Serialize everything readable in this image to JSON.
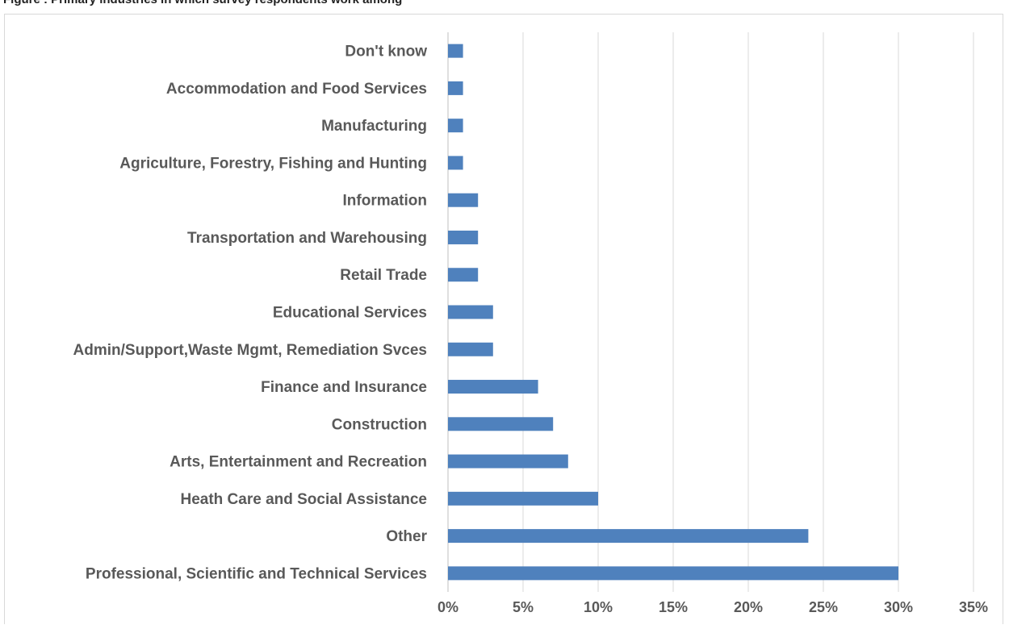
{
  "header": {
    "visible_text": "Figure : Primary industries in which survey respondents work among"
  },
  "chart_data": {
    "type": "bar",
    "orientation": "horizontal",
    "title": "",
    "xlabel": "",
    "ylabel": "",
    "categories": [
      "Don't know",
      "Accommodation and Food Services",
      "Manufacturing",
      "Agriculture, Forestry, Fishing and Hunting",
      "Information",
      "Transportation and Warehousing",
      "Retail Trade",
      "Educational Services",
      "Admin/Support,Waste Mgmt, Remediation Svces",
      "Finance and Insurance",
      "Construction",
      "Arts, Entertainment and Recreation",
      "Heath Care and Social Assistance",
      "Other",
      "Professional, Scientific and Technical Services"
    ],
    "values": [
      1,
      1,
      1,
      1,
      2,
      2,
      2,
      3,
      3,
      6,
      7,
      8,
      10,
      24,
      30
    ],
    "value_unit": "%",
    "xlim": [
      0,
      35
    ],
    "xticks": [
      "0%",
      "5%",
      "10%",
      "15%",
      "20%",
      "25%",
      "30%",
      "35%"
    ],
    "grid": "vertical",
    "legend": "none",
    "colors": {
      "bar": "#4f81bd",
      "grid": "#d9d9d9",
      "axis": "#bfbfbf",
      "label": "#595959"
    }
  }
}
